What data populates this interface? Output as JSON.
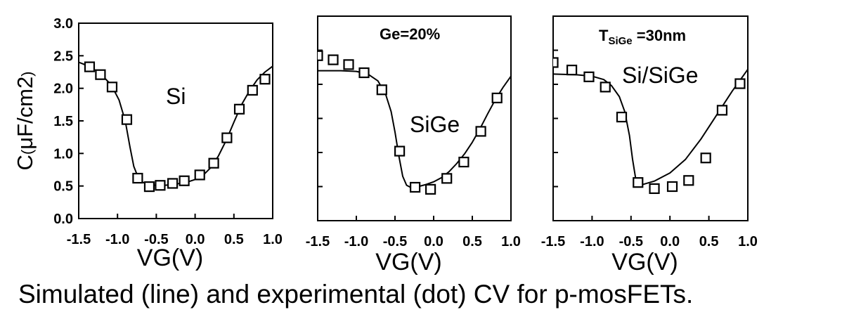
{
  "caption": "Simulated (line) and experimental (dot) CV for p-mosFETs.",
  "chart_data": [
    {
      "type": "scatter",
      "xlabel": "VG(V)",
      "ylabel": "C(μF/cm2)",
      "ylabel_parts": {
        "main": "C",
        "paren_open": "(",
        "mu": "μ",
        "rest": "F/cm2",
        "paren_close": ")"
      },
      "xlim": [
        -1.5,
        1.0
      ],
      "ylim": [
        0.0,
        3.0
      ],
      "xticks": [
        -1.5,
        -1.0,
        -0.5,
        0.0,
        0.5,
        1.0
      ],
      "xtick_labels": [
        "-1.5",
        "-1.0",
        "-0.5",
        "0.0",
        "0.5",
        "1.0"
      ],
      "yticks": [
        0.0,
        0.5,
        1.0,
        1.5,
        2.0,
        2.5,
        3.0
      ],
      "ytick_labels": [
        "0.0",
        "0.5",
        "1.0",
        "1.5",
        "2.0",
        "2.5",
        "3.0"
      ],
      "annotations": [
        {
          "text": "Si",
          "x": -0.3,
          "y": 1.9
        }
      ],
      "series": [
        {
          "kind": "line",
          "x": [
            -1.5,
            -1.35,
            -1.2,
            -1.08,
            -0.98,
            -0.9,
            -0.84,
            -0.79,
            -0.74,
            -0.68,
            -0.6,
            -0.5,
            -0.4,
            -0.3,
            -0.2,
            -0.1,
            0.0,
            0.1,
            0.2,
            0.3,
            0.4,
            0.5,
            0.6,
            0.7,
            0.8,
            0.9,
            1.0
          ],
          "y": [
            2.4,
            2.33,
            2.2,
            2.05,
            1.82,
            1.5,
            1.1,
            0.8,
            0.65,
            0.56,
            0.52,
            0.51,
            0.51,
            0.52,
            0.54,
            0.56,
            0.6,
            0.66,
            0.78,
            0.96,
            1.2,
            1.48,
            1.75,
            1.96,
            2.13,
            2.25,
            2.34
          ]
        },
        {
          "kind": "points",
          "x": [
            -1.36,
            -1.22,
            -1.07,
            -0.88,
            -0.74,
            -0.59,
            -0.45,
            -0.29,
            -0.14,
            0.06,
            0.24,
            0.41,
            0.57,
            0.74,
            0.9
          ],
          "y": [
            2.33,
            2.21,
            2.02,
            1.52,
            0.62,
            0.49,
            0.51,
            0.54,
            0.58,
            0.67,
            0.85,
            1.24,
            1.68,
            1.97,
            2.14
          ]
        }
      ]
    },
    {
      "type": "scatter",
      "xlabel": "VG(V)",
      "xlim": [
        -1.5,
        1.0
      ],
      "ylim": [
        0.0,
        3.0
      ],
      "xticks": [
        -1.5,
        -1.0,
        -0.5,
        0.0,
        0.5,
        1.0
      ],
      "xtick_labels": [
        "-1.5",
        "-1.0",
        "-0.5",
        "0.0",
        "0.5",
        "1.0"
      ],
      "yticks": [
        0.5,
        1.0,
        1.5,
        2.0,
        2.5
      ],
      "annotations": [
        {
          "text": "Ge=20%",
          "x": -0.95,
          "y": 2.7
        },
        {
          "text": "SiGe",
          "x": 0.2,
          "y": 1.4
        }
      ],
      "series": [
        {
          "kind": "line",
          "x": [
            -1.5,
            -1.2,
            -1.0,
            -0.85,
            -0.72,
            -0.62,
            -0.55,
            -0.5,
            -0.45,
            -0.4,
            -0.35,
            -0.3,
            -0.2,
            -0.1,
            0.0,
            0.1,
            0.2,
            0.3,
            0.4,
            0.5,
            0.6,
            0.7,
            0.8,
            0.9,
            1.0
          ],
          "y": [
            2.2,
            2.2,
            2.19,
            2.15,
            2.05,
            1.85,
            1.6,
            1.3,
            0.95,
            0.65,
            0.52,
            0.49,
            0.5,
            0.53,
            0.57,
            0.63,
            0.72,
            0.84,
            0.98,
            1.15,
            1.35,
            1.57,
            1.78,
            1.96,
            2.12
          ]
        },
        {
          "kind": "points",
          "x": [
            -1.5,
            -1.3,
            -1.1,
            -0.9,
            -0.67,
            -0.44,
            -0.24,
            -0.04,
            0.17,
            0.39,
            0.61,
            0.82
          ],
          "y": [
            2.42,
            2.36,
            2.29,
            2.17,
            1.92,
            1.02,
            0.49,
            0.46,
            0.62,
            0.86,
            1.31,
            1.8
          ]
        }
      ]
    },
    {
      "type": "scatter",
      "xlabel": "VG(V)",
      "xlim": [
        -1.5,
        1.0
      ],
      "ylim": [
        0.0,
        3.0
      ],
      "xticks": [
        -1.5,
        -1.0,
        -0.5,
        0.0,
        0.5,
        1.0
      ],
      "xtick_labels": [
        "-1.5",
        "-1.0",
        "-0.5",
        "0.0",
        "0.5",
        "1.0"
      ],
      "yticks": [
        0.5,
        1.0,
        1.5,
        2.0,
        2.5
      ],
      "annotations": [
        {
          "text_main": "T",
          "text_sub": "SiGe",
          "text_rest": " =30nm",
          "x": -0.85,
          "y": 2.7
        },
        {
          "text": "Si/SiGe",
          "x": -0.3,
          "y": 2.0
        }
      ],
      "series": [
        {
          "kind": "line",
          "x": [
            -1.5,
            -1.2,
            -1.0,
            -0.85,
            -0.75,
            -0.65,
            -0.58,
            -0.52,
            -0.48,
            -0.44,
            -0.4,
            -0.35,
            -0.2,
            0.0,
            0.2,
            0.4,
            0.6,
            0.8,
            1.0
          ],
          "y": [
            2.15,
            2.14,
            2.12,
            2.07,
            1.98,
            1.82,
            1.6,
            1.25,
            0.9,
            0.62,
            0.54,
            0.53,
            0.58,
            0.7,
            0.9,
            1.2,
            1.55,
            1.9,
            2.22
          ]
        },
        {
          "kind": "points",
          "x": [
            -1.5,
            -1.26,
            -1.04,
            -0.83,
            -0.62,
            -0.41,
            -0.2,
            0.03,
            0.24,
            0.46,
            0.67,
            0.9
          ],
          "y": [
            2.32,
            2.21,
            2.11,
            1.96,
            1.52,
            0.56,
            0.47,
            0.5,
            0.59,
            0.92,
            1.62,
            2.01
          ]
        }
      ]
    }
  ]
}
